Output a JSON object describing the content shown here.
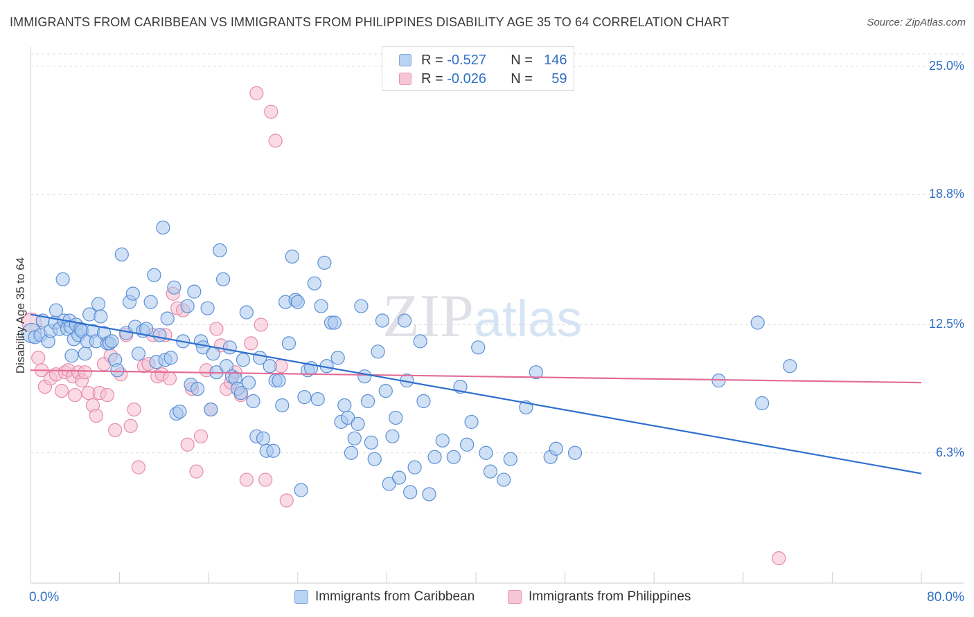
{
  "title": "IMMIGRANTS FROM CARIBBEAN VS IMMIGRANTS FROM PHILIPPINES DISABILITY AGE 35 TO 64 CORRELATION CHART",
  "source": "Source: ZipAtlas.com",
  "watermark": {
    "zip": "ZIP",
    "atlas": "atlas"
  },
  "legend": {
    "r_label": "R =",
    "n_label": "N =",
    "series": [
      {
        "r": "-0.527",
        "n": "146",
        "fill": "#b9d3f3",
        "stroke": "#7fa8de"
      },
      {
        "r": "-0.026",
        "n": "59",
        "fill": "#f7c6d6",
        "stroke": "#e896b3"
      }
    ]
  },
  "bottom_legend": [
    "Immigrants from Caribbean",
    "Immigrants from Philippines"
  ],
  "colors": {
    "blue_fill": "#a9c8ef",
    "blue_stroke": "#5b8fd6",
    "blue_line": "#2f6fcf",
    "pink_fill": "#f6bdd0",
    "pink_stroke": "#e58bab",
    "pink_line": "#e46c98",
    "tick_text": "#2f6fc6",
    "grid": "#dddddd"
  },
  "chart_data": {
    "type": "scatter",
    "title": "IMMIGRANTS FROM CARIBBEAN VS IMMIGRANTS FROM PHILIPPINES DISABILITY AGE 35 TO 64 CORRELATION CHART",
    "xlabel": "",
    "ylabel": "Disability Age 35 to 64",
    "xlim": [
      0,
      80
    ],
    "ylim": [
      0,
      25.6
    ],
    "x_tick_labels": [
      "0.0%",
      "80.0%"
    ],
    "y_ticks": [
      6.3,
      12.5,
      18.8,
      25.0
    ],
    "y_tick_labels": [
      "6.3%",
      "12.5%",
      "18.8%",
      "25.0%"
    ],
    "grid": true,
    "legend_placement": "top-center",
    "series": [
      {
        "name": "Immigrants from Caribbean",
        "r": -0.527,
        "n": 146,
        "trend": {
          "x": [
            0,
            80
          ],
          "y": [
            13.0,
            5.3
          ]
        },
        "points": [
          [
            0.1,
            12.1
          ],
          [
            0.4,
            11.9
          ],
          [
            0.9,
            12.0
          ],
          [
            1.1,
            12.7
          ],
          [
            1.6,
            11.7
          ],
          [
            1.8,
            12.2
          ],
          [
            2.2,
            12.6
          ],
          [
            2.3,
            13.2
          ],
          [
            2.6,
            12.3
          ],
          [
            2.9,
            14.7
          ],
          [
            3.0,
            12.7
          ],
          [
            3.3,
            12.3
          ],
          [
            3.5,
            12.7
          ],
          [
            3.6,
            12.4
          ],
          [
            3.7,
            11.0
          ],
          [
            3.9,
            11.8
          ],
          [
            4.1,
            12.5
          ],
          [
            4.3,
            12.0
          ],
          [
            4.5,
            12.3
          ],
          [
            4.6,
            12.2
          ],
          [
            4.9,
            11.1
          ],
          [
            5.1,
            11.7
          ],
          [
            5.3,
            13.0
          ],
          [
            5.6,
            12.2
          ],
          [
            5.9,
            11.7
          ],
          [
            6.1,
            13.5
          ],
          [
            6.3,
            12.9
          ],
          [
            6.6,
            12.1
          ],
          [
            6.9,
            11.6
          ],
          [
            7.1,
            11.6
          ],
          [
            7.3,
            11.7
          ],
          [
            7.6,
            10.8
          ],
          [
            7.8,
            10.3
          ],
          [
            8.2,
            15.9
          ],
          [
            8.6,
            12.1
          ],
          [
            8.9,
            13.6
          ],
          [
            9.2,
            14.0
          ],
          [
            9.4,
            12.4
          ],
          [
            9.7,
            11.1
          ],
          [
            10.1,
            12.2
          ],
          [
            10.4,
            12.3
          ],
          [
            10.8,
            13.6
          ],
          [
            11.1,
            14.9
          ],
          [
            11.3,
            10.7
          ],
          [
            11.6,
            12.0
          ],
          [
            11.9,
            17.2
          ],
          [
            12.1,
            10.8
          ],
          [
            12.3,
            12.8
          ],
          [
            12.6,
            10.9
          ],
          [
            12.9,
            14.3
          ],
          [
            13.1,
            8.2
          ],
          [
            13.4,
            8.3
          ],
          [
            13.7,
            11.7
          ],
          [
            14.1,
            13.4
          ],
          [
            14.4,
            9.6
          ],
          [
            14.7,
            14.1
          ],
          [
            15.0,
            9.4
          ],
          [
            15.3,
            11.7
          ],
          [
            15.5,
            11.4
          ],
          [
            15.9,
            13.3
          ],
          [
            16.2,
            8.4
          ],
          [
            16.4,
            11.1
          ],
          [
            16.7,
            10.2
          ],
          [
            17.0,
            16.1
          ],
          [
            17.3,
            14.7
          ],
          [
            17.6,
            10.5
          ],
          [
            17.9,
            11.4
          ],
          [
            18.1,
            10.0
          ],
          [
            18.4,
            9.9
          ],
          [
            18.6,
            9.4
          ],
          [
            18.9,
            9.2
          ],
          [
            19.1,
            10.8
          ],
          [
            19.4,
            13.1
          ],
          [
            19.6,
            9.7
          ],
          [
            20.0,
            8.8
          ],
          [
            20.3,
            7.1
          ],
          [
            20.6,
            10.9
          ],
          [
            20.9,
            7.0
          ],
          [
            21.2,
            6.4
          ],
          [
            21.5,
            10.5
          ],
          [
            21.8,
            6.4
          ],
          [
            22.0,
            9.8
          ],
          [
            22.3,
            9.8
          ],
          [
            22.6,
            8.6
          ],
          [
            22.9,
            13.6
          ],
          [
            23.2,
            11.6
          ],
          [
            23.5,
            15.8
          ],
          [
            23.8,
            13.7
          ],
          [
            24.0,
            13.6
          ],
          [
            24.3,
            4.5
          ],
          [
            24.6,
            9.0
          ],
          [
            24.9,
            10.3
          ],
          [
            25.2,
            10.4
          ],
          [
            25.5,
            14.5
          ],
          [
            25.8,
            8.9
          ],
          [
            26.1,
            13.4
          ],
          [
            26.4,
            15.5
          ],
          [
            26.6,
            10.5
          ],
          [
            27.0,
            12.6
          ],
          [
            27.3,
            12.6
          ],
          [
            27.6,
            10.9
          ],
          [
            27.9,
            7.8
          ],
          [
            28.2,
            8.6
          ],
          [
            28.5,
            8.0
          ],
          [
            28.8,
            6.3
          ],
          [
            29.1,
            7.0
          ],
          [
            29.4,
            7.7
          ],
          [
            29.7,
            13.4
          ],
          [
            30.0,
            10.0
          ],
          [
            30.3,
            8.8
          ],
          [
            30.6,
            6.8
          ],
          [
            30.9,
            6.0
          ],
          [
            31.2,
            11.2
          ],
          [
            31.6,
            12.7
          ],
          [
            31.9,
            9.3
          ],
          [
            32.2,
            4.8
          ],
          [
            32.5,
            7.1
          ],
          [
            32.8,
            8.0
          ],
          [
            33.1,
            5.1
          ],
          [
            33.6,
            12.7
          ],
          [
            33.8,
            9.8
          ],
          [
            34.1,
            4.4
          ],
          [
            34.5,
            5.6
          ],
          [
            35.0,
            11.7
          ],
          [
            35.3,
            8.8
          ],
          [
            35.8,
            4.3
          ],
          [
            36.3,
            6.1
          ],
          [
            37.0,
            6.9
          ],
          [
            38.0,
            6.1
          ],
          [
            38.6,
            9.5
          ],
          [
            39.2,
            6.7
          ],
          [
            39.6,
            7.8
          ],
          [
            40.2,
            11.4
          ],
          [
            40.9,
            6.3
          ],
          [
            41.3,
            5.4
          ],
          [
            42.5,
            5.0
          ],
          [
            43.1,
            6.0
          ],
          [
            44.5,
            8.5
          ],
          [
            45.4,
            10.2
          ],
          [
            46.7,
            6.1
          ],
          [
            47.2,
            6.5
          ],
          [
            48.9,
            6.3
          ],
          [
            61.8,
            9.8
          ],
          [
            65.3,
            12.6
          ],
          [
            65.7,
            8.7
          ],
          [
            68.2,
            10.5
          ]
        ]
      },
      {
        "name": "Immigrants from Philippines",
        "r": -0.026,
        "n": 59,
        "trend": {
          "x": [
            0,
            80
          ],
          "y": [
            10.3,
            9.7
          ]
        },
        "points": [
          [
            0.1,
            12.6
          ],
          [
            0.7,
            10.9
          ],
          [
            1.0,
            10.3
          ],
          [
            1.3,
            9.5
          ],
          [
            1.8,
            9.9
          ],
          [
            2.3,
            10.1
          ],
          [
            2.8,
            9.3
          ],
          [
            3.1,
            10.2
          ],
          [
            3.4,
            10.3
          ],
          [
            3.8,
            10.0
          ],
          [
            4.0,
            9.1
          ],
          [
            4.3,
            10.2
          ],
          [
            4.6,
            9.8
          ],
          [
            4.9,
            10.2
          ],
          [
            5.2,
            9.2
          ],
          [
            5.6,
            8.6
          ],
          [
            5.9,
            8.1
          ],
          [
            6.2,
            9.2
          ],
          [
            6.6,
            10.6
          ],
          [
            6.9,
            9.1
          ],
          [
            7.2,
            11.0
          ],
          [
            7.6,
            7.4
          ],
          [
            8.1,
            10.1
          ],
          [
            8.6,
            12.0
          ],
          [
            9.0,
            7.6
          ],
          [
            9.3,
            8.4
          ],
          [
            9.7,
            5.6
          ],
          [
            10.2,
            10.5
          ],
          [
            10.6,
            10.6
          ],
          [
            11.0,
            12.0
          ],
          [
            11.4,
            10.0
          ],
          [
            11.8,
            10.1
          ],
          [
            12.1,
            12.0
          ],
          [
            12.5,
            9.9
          ],
          [
            12.8,
            14.0
          ],
          [
            13.2,
            13.3
          ],
          [
            13.7,
            13.2
          ],
          [
            14.1,
            6.7
          ],
          [
            14.5,
            9.4
          ],
          [
            14.9,
            5.4
          ],
          [
            15.3,
            7.1
          ],
          [
            15.8,
            10.3
          ],
          [
            16.2,
            8.4
          ],
          [
            16.7,
            12.3
          ],
          [
            17.1,
            11.5
          ],
          [
            17.6,
            9.4
          ],
          [
            18.0,
            9.7
          ],
          [
            18.4,
            10.2
          ],
          [
            18.9,
            9.1
          ],
          [
            19.4,
            5.0
          ],
          [
            19.8,
            11.6
          ],
          [
            20.3,
            23.7
          ],
          [
            20.7,
            12.5
          ],
          [
            21.1,
            5.0
          ],
          [
            21.6,
            22.8
          ],
          [
            22.0,
            21.4
          ],
          [
            22.5,
            10.5
          ],
          [
            23.0,
            4.0
          ],
          [
            67.2,
            1.2
          ]
        ]
      }
    ]
  }
}
